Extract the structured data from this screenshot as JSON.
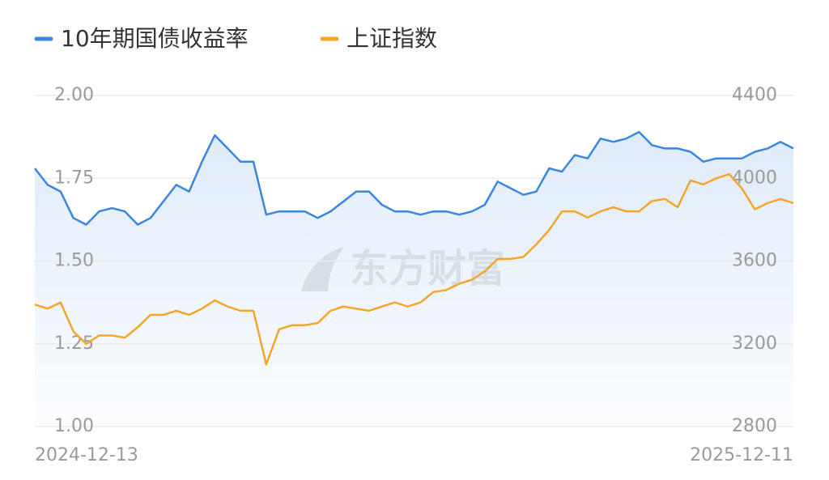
{
  "chart_data": {
    "type": "line",
    "legend_position": "top",
    "watermark": "东方财富",
    "categories": [
      "2024-12-13",
      null,
      null,
      null,
      null,
      null,
      null,
      null,
      null,
      null,
      null,
      null,
      null,
      null,
      null,
      null,
      null,
      null,
      null,
      null,
      null,
      null,
      null,
      null,
      null,
      null,
      null,
      null,
      null,
      null,
      null,
      null,
      null,
      null,
      null,
      null,
      null,
      null,
      null,
      null,
      null,
      null,
      null,
      null,
      null,
      null,
      null,
      null,
      null,
      null,
      null,
      null,
      null,
      null,
      null,
      null,
      null,
      null,
      null,
      "2025-12-11"
    ],
    "series": [
      {
        "name": "10年期国债收益率",
        "color": "#3a86e0",
        "area": true,
        "values": [
          1.78,
          1.73,
          1.71,
          1.63,
          1.61,
          1.65,
          1.66,
          1.65,
          1.61,
          1.63,
          1.68,
          1.73,
          1.71,
          1.8,
          1.88,
          1.84,
          1.8,
          1.8,
          1.64,
          1.65,
          1.65,
          1.65,
          1.63,
          1.65,
          1.68,
          1.71,
          1.71,
          1.67,
          1.65,
          1.65,
          1.64,
          1.65,
          1.65,
          1.64,
          1.65,
          1.67,
          1.74,
          1.72,
          1.7,
          1.71,
          1.78,
          1.77,
          1.82,
          1.81,
          1.87,
          1.86,
          1.87,
          1.89,
          1.85,
          1.84,
          1.84,
          1.83,
          1.8,
          1.81,
          1.81,
          1.81,
          1.83,
          1.84,
          1.86,
          1.84
        ]
      },
      {
        "name": "上证指数",
        "color": "#f5a42c",
        "axis": "y2",
        "values": [
          3390,
          3370,
          3400,
          3260,
          3200,
          3240,
          3240,
          3230,
          3280,
          3340,
          3340,
          3360,
          3340,
          3370,
          3410,
          3380,
          3360,
          3360,
          3100,
          3270,
          3290,
          3290,
          3300,
          3360,
          3380,
          3370,
          3360,
          3380,
          3400,
          3380,
          3400,
          3450,
          3460,
          3490,
          3510,
          3550,
          3610,
          3610,
          3620,
          3680,
          3750,
          3840,
          3840,
          3810,
          3840,
          3860,
          3840,
          3840,
          3890,
          3900,
          3860,
          3990,
          3970,
          4000,
          4020,
          3950,
          3850,
          3880,
          3900,
          3880
        ]
      }
    ],
    "ylim": [
      1.0,
      2.0
    ],
    "yticks": [
      {
        "value": 1.0,
        "label": "1.00"
      },
      {
        "value": 1.25,
        "label": "1.25"
      },
      {
        "value": 1.5,
        "label": "1.50"
      },
      {
        "value": 1.75,
        "label": "1.75"
      },
      {
        "value": 2.0,
        "label": "2.00"
      }
    ],
    "y2lim": [
      2800,
      4400
    ],
    "y2ticks": [
      2800,
      3200,
      3600,
      4000,
      4400
    ],
    "grid": true
  }
}
